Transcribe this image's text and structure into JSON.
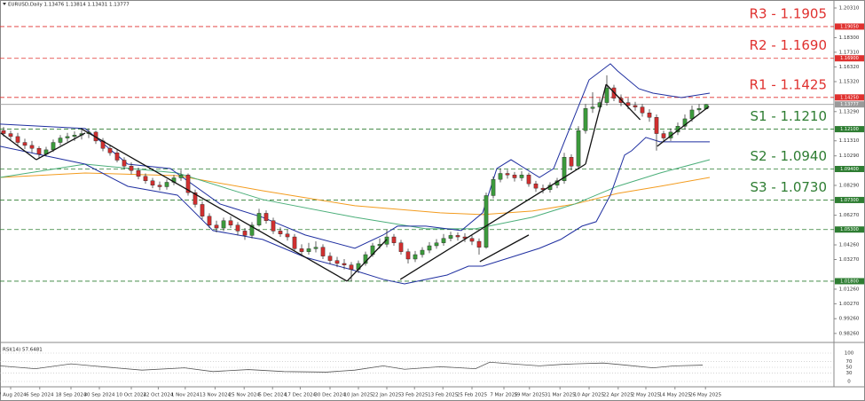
{
  "chart_data": [
    {
      "type": "candlestick",
      "title": "EURUSD,Daily 1.13476 1.13814 1.13431 1.13777",
      "xlim": [
        0,
        117.5
      ],
      "xticks": [
        {
          "value": 1.5,
          "label": "27 Aug 2024"
        },
        {
          "value": 5.6,
          "label": "6 Sep 2024"
        },
        {
          "value": 10,
          "label": "18 Sep 2024"
        },
        {
          "value": 14,
          "label": "30 Sep 2024"
        },
        {
          "value": 18.5,
          "label": "10 Oct 2024"
        },
        {
          "value": 22.3,
          "label": "22 Oct 2024"
        },
        {
          "value": 26.1,
          "label": "1 Nov 2024"
        },
        {
          "value": 30.3,
          "label": "13 Nov 2024"
        },
        {
          "value": 34.4,
          "label": "25 Nov 2024"
        },
        {
          "value": 38.4,
          "label": "5 Dec 2024"
        },
        {
          "value": 42.3,
          "label": "17 Dec 2024"
        },
        {
          "value": 46.5,
          "label": "30 Dec 2024"
        },
        {
          "value": 50.5,
          "label": "10 Jan 2025"
        },
        {
          "value": 54.5,
          "label": "22 Jan 2025"
        },
        {
          "value": 58.4,
          "label": "3 Feb 2025"
        },
        {
          "value": 62.4,
          "label": "13 Feb 2025"
        },
        {
          "value": 66.5,
          "label": "25 Feb 2025"
        },
        {
          "value": 71,
          "label": "7 Mar 2025"
        },
        {
          "value": 74.6,
          "label": "19 Mar 2025"
        },
        {
          "value": 78.9,
          "label": "31 Mar 2025"
        },
        {
          "value": 83,
          "label": "10 Apr 2025"
        },
        {
          "value": 87.1,
          "label": "22 Apr 2025"
        },
        {
          "value": 91,
          "label": "2 May 2025"
        },
        {
          "value": 95.1,
          "label": "14 May 2025"
        },
        {
          "value": 99.4,
          "label": "26 May 2025"
        }
      ],
      "ylim": [
        0.9771,
        1.2085
      ],
      "yticks": [
        {
          "value": 1.2031,
          "label": "1.20310"
        },
        {
          "value": 1.183,
          "label": "1.18300"
        },
        {
          "value": 1.1731,
          "label": "1.17310"
        },
        {
          "value": 1.1632,
          "label": "1.16320"
        },
        {
          "value": 1.1532,
          "label": "1.15320"
        },
        {
          "value": 1.1329,
          "label": "1.13290"
        },
        {
          "value": 1.1131,
          "label": "1.11310"
        },
        {
          "value": 1.1029,
          "label": "1.10290"
        },
        {
          "value": 1.0829,
          "label": "1.08290"
        },
        {
          "value": 1.0627,
          "label": "1.06270"
        },
        {
          "value": 1.0426,
          "label": "1.04260"
        },
        {
          "value": 1.0327,
          "label": "1.03270"
        },
        {
          "value": 1.0126,
          "label": "1.01260"
        },
        {
          "value": 1.0027,
          "label": "1.00270"
        },
        {
          "value": 0.9926,
          "label": "0.99260"
        },
        {
          "value": 0.9826,
          "label": "0.98260"
        }
      ],
      "up_color": "#3c9a3c",
      "down_color": "#d03030",
      "open": [
        1.12,
        1.118,
        1.116,
        1.112,
        1.11,
        1.108,
        1.104,
        1.107,
        1.112,
        1.115,
        1.116,
        1.117,
        1.118,
        1.119,
        1.113,
        1.108,
        1.105,
        1.1,
        1.096,
        1.093,
        1.089,
        1.086,
        1.083,
        1.082,
        1.085,
        1.088,
        1.09,
        1.078,
        1.07,
        1.062,
        1.056,
        1.054,
        1.059,
        1.056,
        1.052,
        1.049,
        1.056,
        1.064,
        1.059,
        1.052,
        1.05,
        1.048,
        1.04,
        1.038,
        1.04,
        1.041,
        1.035,
        1.032,
        1.03,
        1.029,
        1.026,
        1.03,
        1.036,
        1.042,
        1.043,
        1.048,
        1.044,
        1.038,
        1.033,
        1.036,
        1.039,
        1.042,
        1.044,
        1.047,
        1.049,
        1.048,
        1.047,
        1.045,
        1.041,
        1.076,
        1.087,
        1.091,
        1.09,
        1.088,
        1.09,
        1.084,
        1.081,
        1.08,
        1.083,
        1.086,
        1.102,
        1.096,
        1.12,
        1.135,
        1.136,
        1.139,
        1.149,
        1.142,
        1.139,
        1.137,
        1.136,
        1.132,
        1.129,
        1.118,
        1.115,
        1.119,
        1.123,
        1.128,
        1.134,
        1.13476
      ],
      "high": [
        1.1225,
        1.12,
        1.1185,
        1.1145,
        1.113,
        1.1095,
        1.109,
        1.114,
        1.117,
        1.1185,
        1.1195,
        1.1205,
        1.1215,
        1.12,
        1.115,
        1.11,
        1.107,
        1.102,
        1.0985,
        1.095,
        1.091,
        1.088,
        1.0855,
        1.087,
        1.09,
        1.0935,
        1.091,
        1.08,
        1.072,
        1.064,
        1.059,
        1.061,
        1.062,
        1.058,
        1.054,
        1.058,
        1.067,
        1.066,
        1.061,
        1.0545,
        1.053,
        1.05,
        1.043,
        1.044,
        1.045,
        1.043,
        1.0375,
        1.0345,
        1.033,
        1.031,
        1.032,
        1.038,
        1.044,
        1.047,
        1.053,
        1.05,
        1.046,
        1.04,
        1.0385,
        1.041,
        1.0445,
        1.0465,
        1.05,
        1.0515,
        1.051,
        1.0505,
        1.049,
        1.047,
        1.078,
        1.089,
        1.0945,
        1.0935,
        1.092,
        1.0925,
        1.0915,
        1.086,
        1.0835,
        1.085,
        1.088,
        1.105,
        1.104,
        1.123,
        1.138,
        1.146,
        1.142,
        1.1575,
        1.151,
        1.1445,
        1.142,
        1.1395,
        1.138,
        1.1345,
        1.131,
        1.12,
        1.1215,
        1.1255,
        1.131,
        1.137,
        1.138,
        1.13814
      ],
      "low": [
        1.116,
        1.1135,
        1.11,
        1.1075,
        1.105,
        1.101,
        1.1025,
        1.1055,
        1.11,
        1.1125,
        1.113,
        1.114,
        1.115,
        1.111,
        1.106,
        1.103,
        1.0985,
        1.094,
        1.0905,
        1.087,
        1.084,
        1.081,
        1.0795,
        1.08,
        1.083,
        1.086,
        1.076,
        1.068,
        1.06,
        1.054,
        1.051,
        1.052,
        1.054,
        1.049,
        1.046,
        1.047,
        1.055,
        1.057,
        1.05,
        1.048,
        1.0455,
        1.038,
        1.035,
        1.036,
        1.0375,
        1.033,
        1.0295,
        1.0275,
        1.026,
        1.018,
        1.0235,
        1.0285,
        1.0345,
        1.04,
        1.041,
        1.042,
        1.036,
        1.03,
        1.031,
        1.034,
        1.037,
        1.04,
        1.042,
        1.045,
        1.0455,
        1.0445,
        1.0425,
        1.036,
        1.04,
        1.074,
        1.085,
        1.0875,
        1.0855,
        1.086,
        1.082,
        1.0785,
        1.0775,
        1.078,
        1.081,
        1.084,
        1.093,
        1.094,
        1.118,
        1.132,
        1.133,
        1.137,
        1.14,
        1.1365,
        1.1345,
        1.1335,
        1.1295,
        1.126,
        1.1065,
        1.1125,
        1.113,
        1.117,
        1.121,
        1.126,
        1.132,
        1.13431
      ],
      "close": [
        1.118,
        1.116,
        1.112,
        1.11,
        1.108,
        1.104,
        1.107,
        1.112,
        1.115,
        1.116,
        1.117,
        1.118,
        1.119,
        1.113,
        1.108,
        1.105,
        1.1,
        1.096,
        1.093,
        1.089,
        1.086,
        1.083,
        1.082,
        1.085,
        1.088,
        1.09,
        1.078,
        1.07,
        1.062,
        1.056,
        1.054,
        1.059,
        1.056,
        1.052,
        1.049,
        1.056,
        1.064,
        1.059,
        1.052,
        1.05,
        1.048,
        1.04,
        1.038,
        1.04,
        1.041,
        1.035,
        1.032,
        1.03,
        1.029,
        1.026,
        1.03,
        1.036,
        1.042,
        1.043,
        1.048,
        1.044,
        1.038,
        1.033,
        1.036,
        1.039,
        1.042,
        1.044,
        1.047,
        1.049,
        1.048,
        1.047,
        1.045,
        1.041,
        1.076,
        1.087,
        1.091,
        1.09,
        1.088,
        1.09,
        1.084,
        1.081,
        1.08,
        1.083,
        1.086,
        1.102,
        1.096,
        1.12,
        1.135,
        1.136,
        1.139,
        1.149,
        1.142,
        1.139,
        1.137,
        1.136,
        1.132,
        1.129,
        1.118,
        1.115,
        1.119,
        1.123,
        1.128,
        1.134,
        1.135,
        1.13777
      ],
      "overlays": [
        {
          "color": "#f39c1f",
          "x": [
            0,
            12,
            25,
            37,
            50,
            62,
            68,
            75,
            81,
            87,
            93,
            100
          ],
          "values": [
            1.0883,
            1.0913,
            1.0895,
            1.0793,
            1.0691,
            1.0643,
            1.0631,
            1.0655,
            1.0703,
            1.0775,
            1.0823,
            1.0883
          ]
        },
        {
          "color": "#4caf7a",
          "x": [
            0,
            12,
            25,
            37,
            50,
            60,
            67,
            75,
            81,
            87,
            93,
            100
          ],
          "values": [
            1.0883,
            1.0973,
            1.0913,
            1.0733,
            1.0613,
            1.0535,
            1.0535,
            1.0613,
            1.0703,
            1.0823,
            1.0913,
            1.1003
          ]
        },
        {
          "color": "#1f2fa0",
          "x": [
            0,
            12,
            18,
            24,
            31,
            37,
            43,
            50,
            54,
            56,
            60,
            65,
            68,
            70,
            72,
            74,
            76,
            78,
            81,
            83,
            86,
            87,
            90,
            92,
            96,
            100
          ],
          "values": [
            1.1244,
            1.1214,
            1.0973,
            1.0943,
            1.0703,
            1.0613,
            1.0493,
            1.0403,
            1.0493,
            1.0553,
            1.0553,
            1.0523,
            1.0643,
            1.0943,
            1.1003,
            1.0943,
            1.0883,
            1.0943,
            1.1304,
            1.1544,
            1.1653,
            1.1605,
            1.1484,
            1.1454,
            1.1424,
            1.1454
          ]
        },
        {
          "color": "#1f2fa0",
          "x": [
            0,
            12,
            18,
            25,
            30,
            37,
            43,
            50,
            54,
            57,
            63,
            66,
            68,
            72,
            76,
            79,
            82,
            84,
            86,
            88,
            89,
            91,
            93,
            96,
            100
          ],
          "values": [
            1.1094,
            1.0973,
            1.0823,
            1.0763,
            1.0523,
            1.0463,
            1.0342,
            1.0252,
            1.0192,
            1.0162,
            1.0222,
            1.0282,
            1.0282,
            1.0342,
            1.0403,
            1.0463,
            1.0553,
            1.0583,
            1.0763,
            1.1034,
            1.1064,
            1.1154,
            1.1124,
            1.1124,
            1.1124
          ]
        }
      ],
      "trendlines": [
        {
          "x": [
            0.1,
            5.1
          ],
          "values": [
            1.1184,
            1.1003
          ]
        },
        {
          "x": [
            5.1,
            12
          ],
          "values": [
            1.1003,
            1.1184
          ]
        },
        {
          "x": [
            11.4,
            48.9
          ],
          "values": [
            1.1214,
            1.018
          ]
        },
        {
          "x": [
            48.9,
            54.5
          ],
          "values": [
            1.018,
            1.0463
          ]
        },
        {
          "x": [
            56.4,
            82.5
          ],
          "values": [
            1.0192,
            1.0973
          ]
        },
        {
          "x": [
            82.5,
            85.4
          ],
          "values": [
            1.0973,
            1.1514
          ]
        },
        {
          "x": [
            85.4,
            90.2
          ],
          "values": [
            1.1514,
            1.1274
          ]
        },
        {
          "x": [
            92.6,
            99.9
          ],
          "values": [
            1.1094,
            1.1364
          ]
        },
        {
          "x": [
            67.6,
            74.5
          ],
          "values": [
            1.0312,
            1.0493
          ]
        }
      ],
      "trend_color": "#111111",
      "levels": [
        {
          "value": 1.1905,
          "label": "R3 - 1.1905",
          "tag": "1.19050",
          "color": "#e0312f",
          "dashed": true
        },
        {
          "value": 1.169,
          "label": "R2 - 1.1690",
          "tag": "1.16900",
          "color": "#e0312f",
          "dashed": true
        },
        {
          "value": 1.1425,
          "label": "R1 - 1.1425",
          "tag": "1.14250",
          "color": "#e0312f",
          "dashed": true
        },
        {
          "value": 1.13777,
          "tag": "1.13777",
          "color": "#9a9a9a",
          "dashed": false
        },
        {
          "value": 1.121,
          "label": "S1 - 1.1210",
          "tag": "1.12100",
          "color": "#2e7d32",
          "dashed": true
        },
        {
          "value": 1.094,
          "label": "S2 - 1.0940",
          "tag": "1.09400",
          "color": "#2e7d32",
          "dashed": true
        },
        {
          "value": 1.073,
          "label": "S3 - 1.0730",
          "tag": "1.07300",
          "color": "#2e7d32",
          "dashed": true
        },
        {
          "value": 1.053,
          "tag": "1.05300",
          "color": "#2e7d32",
          "dashed": true
        },
        {
          "value": 1.018,
          "tag": "1.01800",
          "color": "#2e7d32",
          "dashed": true
        }
      ]
    },
    {
      "type": "line",
      "title": "RSI(14) 57.6481",
      "xlim": [
        0,
        117.5
      ],
      "x": [
        0,
        5,
        10,
        13,
        20,
        26,
        30,
        35,
        40,
        46,
        50,
        54,
        57,
        62,
        67,
        69,
        72,
        76,
        79,
        81,
        85,
        88,
        92,
        95,
        99
      ],
      "values": [
        55,
        45,
        62,
        55,
        40,
        48,
        35,
        42,
        35,
        33,
        40,
        55,
        43,
        52,
        45,
        68,
        62,
        55,
        60,
        62,
        65,
        58,
        48,
        55,
        57.6
      ],
      "color": "#555555",
      "ylim": [
        0,
        100
      ],
      "yticks": [
        100,
        70,
        50,
        30,
        0
      ],
      "grid": true
    }
  ]
}
